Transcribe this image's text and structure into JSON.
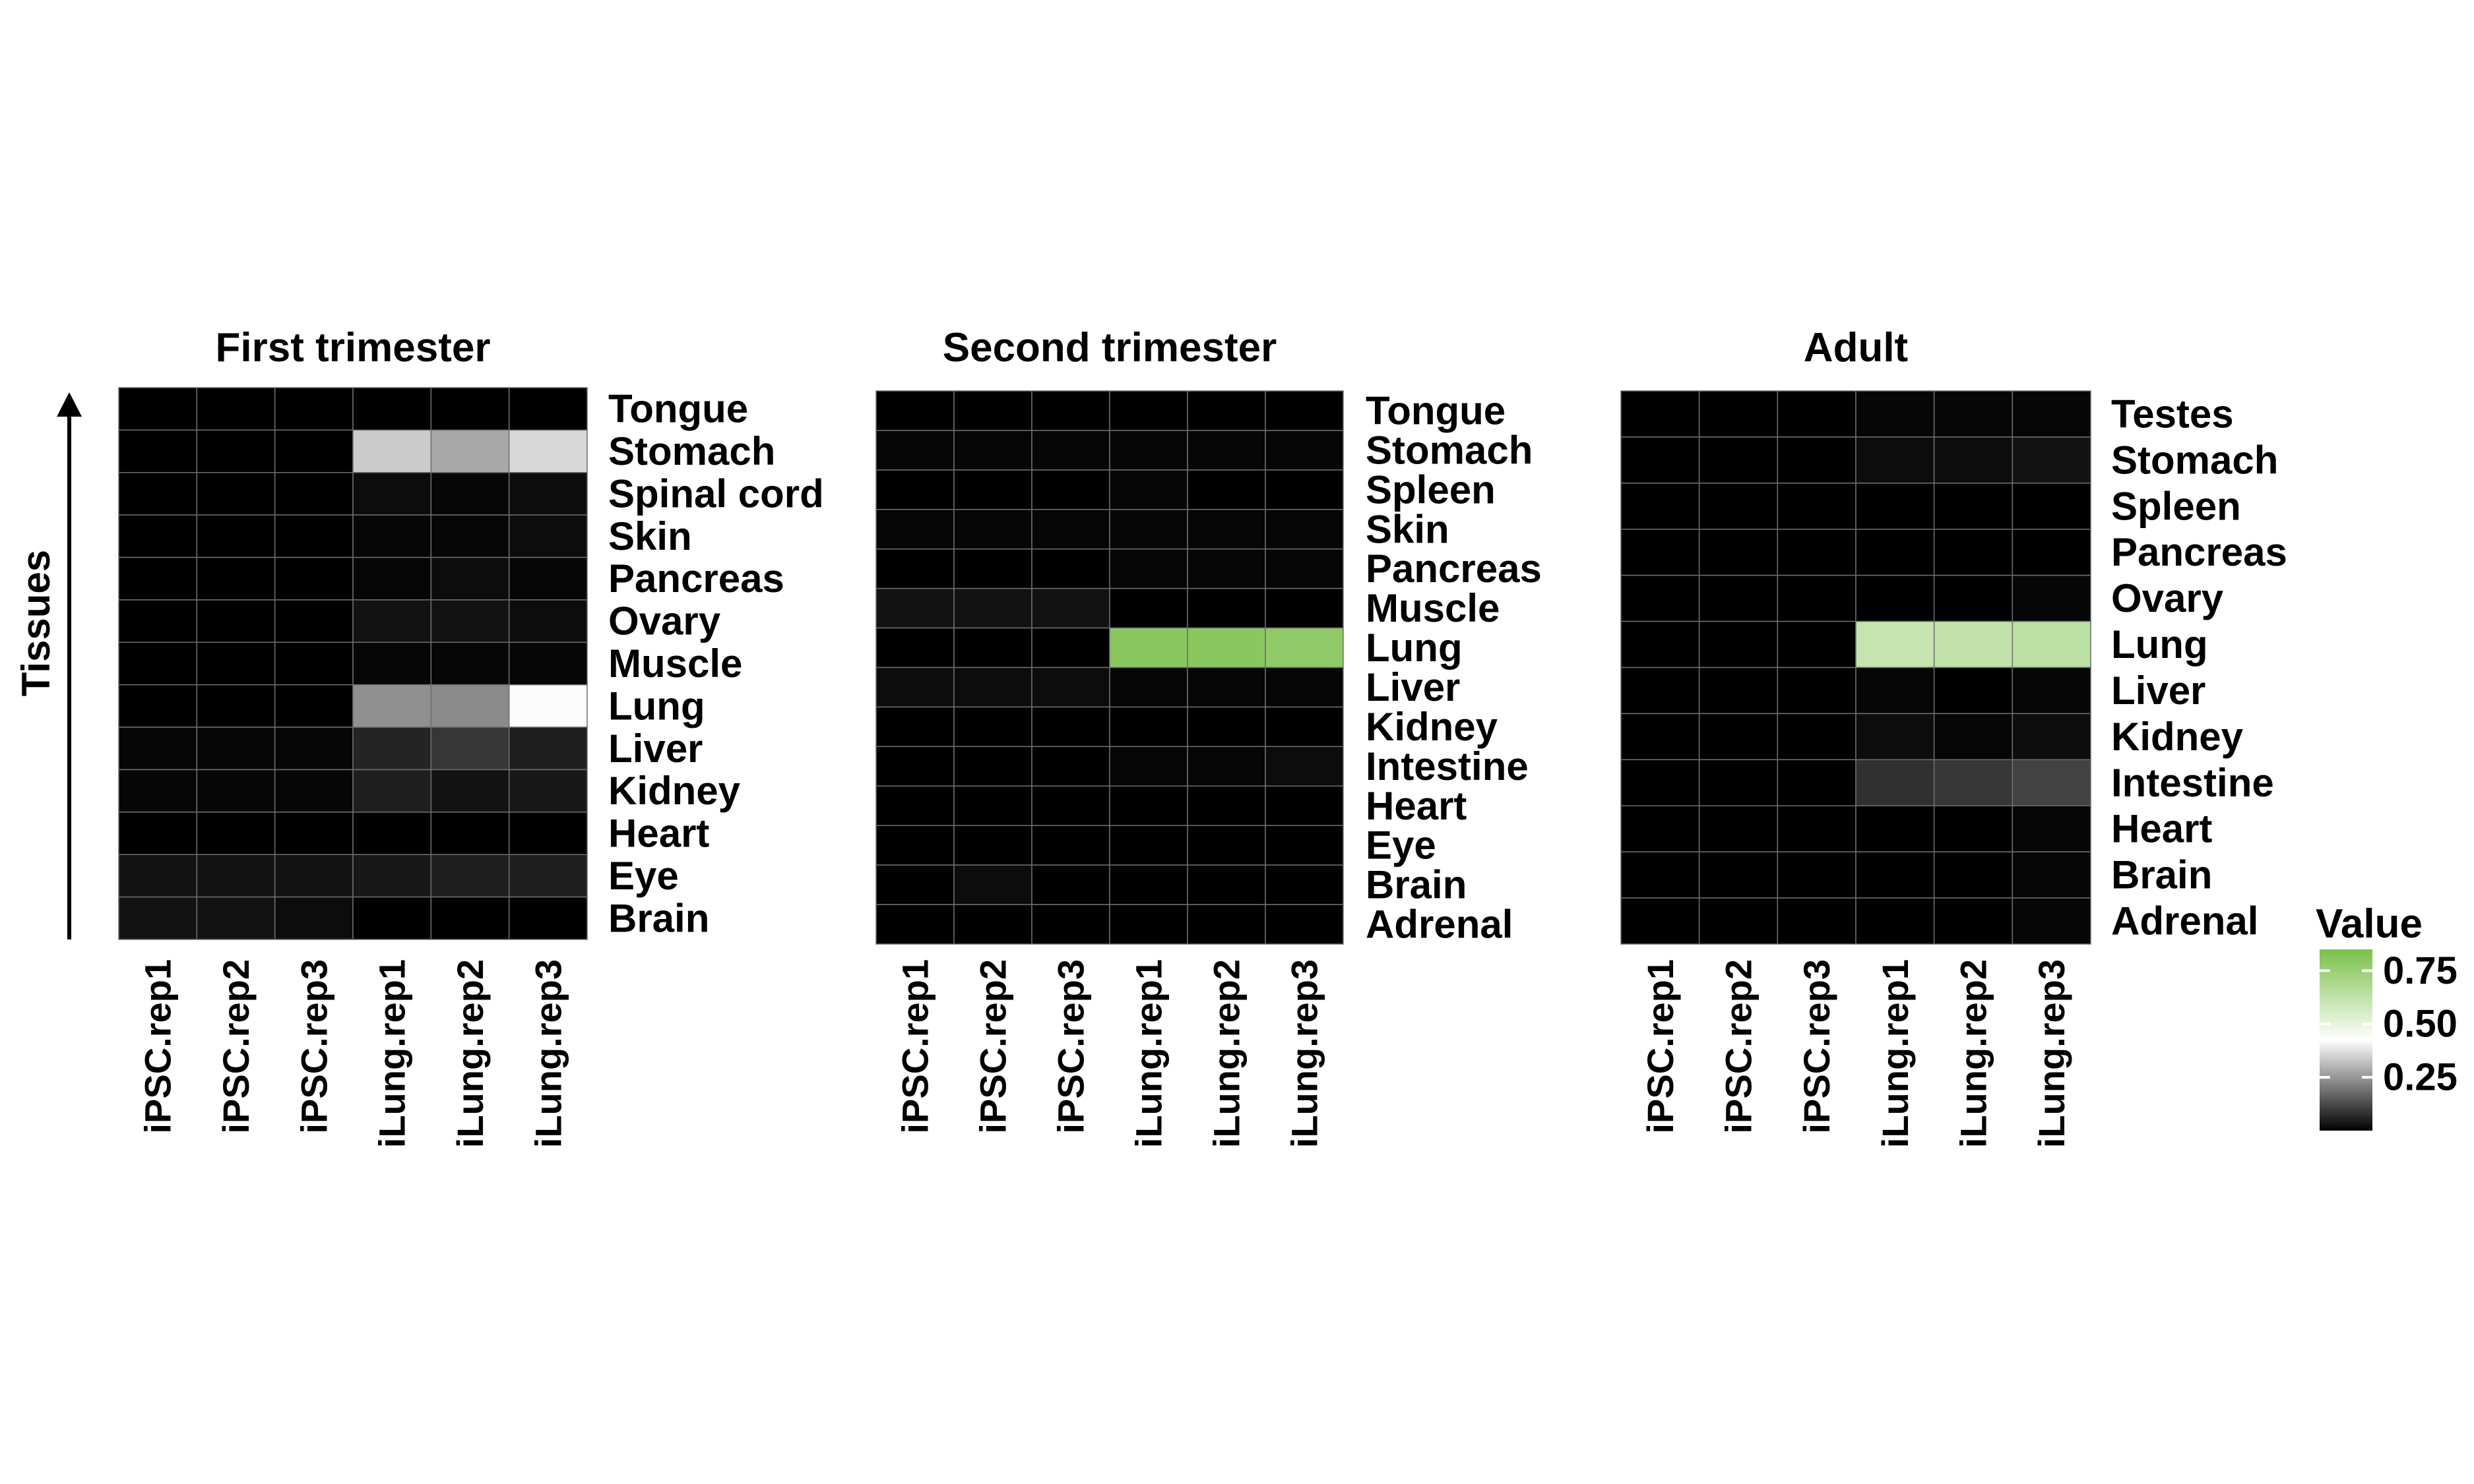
{
  "y_axis_title": "Tissues",
  "legend": {
    "title": "Value",
    "ticks": [
      0.25,
      0.5,
      0.75
    ],
    "tick_labels": [
      "0.25",
      "0.50",
      "0.75"
    ],
    "range": [
      0,
      0.85
    ],
    "low_color": "#000000",
    "mid_color": "#ffffff",
    "high_color": "#7bc04a"
  },
  "chart_data": [
    {
      "type": "heatmap",
      "title": "First trimester",
      "columns": [
        "iPSC.rep1",
        "iPSC.rep2",
        "iPSC.rep3",
        "iLung.rep1",
        "iLung.rep2",
        "iLung.rep3"
      ],
      "rows": [
        "Tongue",
        "Stomach",
        "Spinal cord",
        "Skin",
        "Pancreas",
        "Ovary",
        "Muscle",
        "Lung",
        "Liver",
        "Kidney",
        "Heart",
        "Eye",
        "Brain"
      ],
      "values": [
        [
          0.0,
          0.0,
          0.0,
          0.0,
          0.0,
          0.0
        ],
        [
          0.0,
          0.0,
          0.0,
          0.34,
          0.28,
          0.36
        ],
        [
          0.0,
          0.0,
          0.0,
          0.02,
          0.01,
          0.02
        ],
        [
          0.0,
          0.0,
          0.0,
          0.01,
          0.01,
          0.02
        ],
        [
          0.0,
          0.0,
          0.0,
          0.01,
          0.02,
          0.01
        ],
        [
          0.0,
          0.0,
          0.0,
          0.03,
          0.03,
          0.02
        ],
        [
          0.0,
          0.0,
          0.0,
          0.01,
          0.01,
          0.01
        ],
        [
          0.0,
          0.0,
          0.0,
          0.24,
          0.23,
          0.42
        ],
        [
          0.01,
          0.01,
          0.01,
          0.06,
          0.09,
          0.05
        ],
        [
          0.01,
          0.01,
          0.01,
          0.05,
          0.03,
          0.04
        ],
        [
          0.0,
          0.0,
          0.0,
          0.0,
          0.0,
          0.0
        ],
        [
          0.03,
          0.03,
          0.03,
          0.04,
          0.05,
          0.05
        ],
        [
          0.03,
          0.03,
          0.02,
          0.0,
          0.0,
          0.0
        ]
      ]
    },
    {
      "type": "heatmap",
      "title": "Second trimester",
      "columns": [
        "iPSC.rep1",
        "iPSC.rep2",
        "iPSC.rep3",
        "iLung.rep1",
        "iLung.rep2",
        "iLung.rep3"
      ],
      "rows": [
        "Tongue",
        "Stomach",
        "Spleen",
        "Skin",
        "Pancreas",
        "Muscle",
        "Lung",
        "Liver",
        "Kidney",
        "Intestine",
        "Heart",
        "Eye",
        "Brain",
        "Adrenal"
      ],
      "values": [
        [
          0.0,
          0.0,
          0.0,
          0.0,
          0.0,
          0.0
        ],
        [
          0.01,
          0.01,
          0.01,
          0.01,
          0.01,
          0.01
        ],
        [
          0.0,
          0.0,
          0.0,
          0.01,
          0.0,
          0.0
        ],
        [
          0.01,
          0.01,
          0.01,
          0.01,
          0.01,
          0.01
        ],
        [
          0.0,
          0.0,
          0.0,
          0.01,
          0.01,
          0.01
        ],
        [
          0.03,
          0.03,
          0.03,
          0.0,
          0.0,
          0.0
        ],
        [
          0.0,
          0.0,
          0.0,
          0.8,
          0.8,
          0.78
        ],
        [
          0.02,
          0.02,
          0.02,
          0.01,
          0.01,
          0.01
        ],
        [
          0.0,
          0.0,
          0.0,
          0.0,
          0.0,
          0.0
        ],
        [
          0.0,
          0.0,
          0.0,
          0.01,
          0.01,
          0.02
        ],
        [
          0.0,
          0.0,
          0.0,
          0.0,
          0.0,
          0.0
        ],
        [
          0.0,
          0.0,
          0.0,
          0.0,
          0.0,
          0.0
        ],
        [
          0.0,
          0.02,
          0.0,
          0.0,
          0.0,
          0.0
        ],
        [
          0.0,
          0.0,
          0.0,
          0.0,
          0.0,
          0.0
        ]
      ]
    },
    {
      "type": "heatmap",
      "title": "Adult",
      "columns": [
        "iPSC.rep1",
        "iPSC.rep2",
        "iPSC.rep3",
        "iLung.rep1",
        "iLung.rep2",
        "iLung.rep3"
      ],
      "rows": [
        "Testes",
        "Stomach",
        "Spleen",
        "Pancreas",
        "Ovary",
        "Lung",
        "Liver",
        "Kidney",
        "Intestine",
        "Heart",
        "Brain",
        "Adrenal"
      ],
      "values": [
        [
          0.0,
          0.0,
          0.0,
          0.01,
          0.01,
          0.01
        ],
        [
          0.0,
          0.0,
          0.0,
          0.02,
          0.02,
          0.03
        ],
        [
          0.0,
          0.0,
          0.0,
          0.0,
          0.0,
          0.0
        ],
        [
          0.0,
          0.0,
          0.0,
          0.0,
          0.0,
          0.0
        ],
        [
          0.0,
          0.0,
          0.0,
          0.0,
          0.0,
          0.01
        ],
        [
          0.0,
          0.0,
          0.0,
          0.61,
          0.62,
          0.64
        ],
        [
          0.0,
          0.0,
          0.0,
          0.01,
          0.0,
          0.01
        ],
        [
          0.0,
          0.0,
          0.0,
          0.02,
          0.01,
          0.02
        ],
        [
          0.0,
          0.0,
          0.0,
          0.08,
          0.09,
          0.11
        ],
        [
          0.0,
          0.0,
          0.0,
          0.0,
          0.0,
          0.01
        ],
        [
          0.0,
          0.0,
          0.0,
          0.0,
          0.0,
          0.01
        ],
        [
          0.0,
          0.0,
          0.0,
          0.0,
          0.0,
          0.01
        ]
      ]
    }
  ]
}
